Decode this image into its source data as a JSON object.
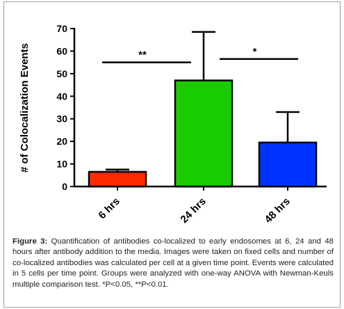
{
  "chart_data": {
    "type": "bar",
    "categories": [
      "6 hrs",
      "24 hrs",
      "48 hrs"
    ],
    "values": [
      6.5,
      47,
      19.5
    ],
    "errors": [
      1,
      21.5,
      13.5
    ],
    "ylabel": "# of Colocalization Events",
    "ylim": [
      0,
      70
    ],
    "yticks": [
      "0",
      "10",
      "20",
      "30",
      "40",
      "50",
      "60",
      "70"
    ],
    "bar_colors": [
      "#ff2a00",
      "#19cc00",
      "#0033ff"
    ],
    "significance": [
      {
        "label": "**",
        "from": "6 hrs",
        "to": "24 hrs",
        "y": 55
      },
      {
        "label": "*",
        "from": "24 hrs",
        "to": "48 hrs",
        "y": 56.5
      }
    ],
    "grid": false
  },
  "caption": {
    "label": "Figure 3:",
    "text": " Quantification of antibodies co-localized to early endosomes at 6, 24 and 48 hours after antibody addition to the media. Images were taken on fixed cells and number of co-localized antibodies was calculated per cell at a given time point. Events were calculated in 5 cells per time point. Groups were analyzed with one-way ANOVA with Newman-Keuls multiple comparison test. *P<0.05, **P<0.01."
  }
}
